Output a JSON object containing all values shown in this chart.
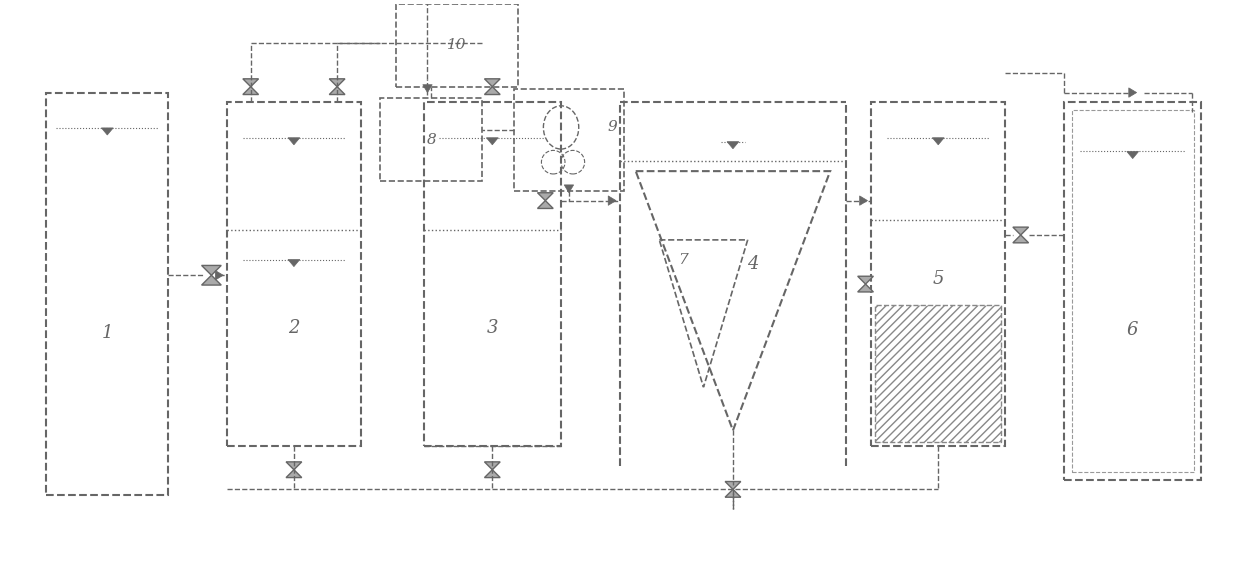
{
  "bg_color": "#ffffff",
  "lc": "#666666",
  "lw": 1.2,
  "fig_width": 12.4,
  "fig_height": 5.78
}
